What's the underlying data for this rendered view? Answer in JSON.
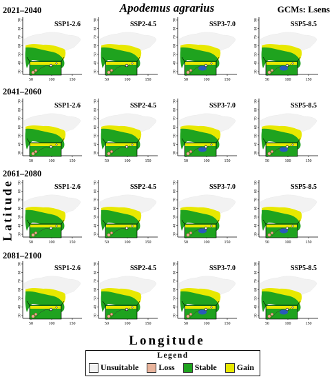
{
  "title": "Apodemus agrarius",
  "gcm_label": "GCMs: Lsens",
  "y_axis_label": "Latitude",
  "x_axis_label": "Longitude",
  "periods": [
    "2021–2040",
    "2041–2060",
    "2061–2080",
    "2081–2100"
  ],
  "scenarios": [
    "SSP1-2.6",
    "SSP2-4.5",
    "SSP3-7.0",
    "SSP5-8.5"
  ],
  "map_axes": {
    "lat_ticks": [
      "90",
      "80",
      "70",
      "60",
      "50",
      "40",
      "30"
    ],
    "lon_ticks": [
      "50",
      "100",
      "150"
    ]
  },
  "legend": {
    "title": "Legend",
    "items": [
      {
        "label": "Unsuitable",
        "color": "#f2f2f2"
      },
      {
        "label": "Loss",
        "color": "#e8b39b"
      },
      {
        "label": "Stable",
        "color": "#1fa31f"
      },
      {
        "label": "Gain",
        "color": "#e8e800"
      }
    ]
  }
}
